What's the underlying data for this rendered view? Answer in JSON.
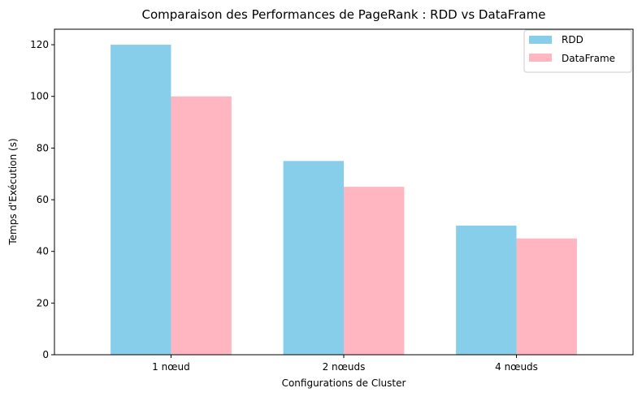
{
  "chart_data": {
    "type": "bar",
    "title": "Comparaison des Performances de PageRank : RDD vs DataFrame",
    "xlabel": "Configurations de Cluster",
    "ylabel": "Temps d'Exécution (s)",
    "categories": [
      "1 nœud",
      "2 nœuds",
      "4 nœuds"
    ],
    "series": [
      {
        "name": "RDD",
        "values": [
          120,
          75,
          50
        ],
        "color": "#87CEEB"
      },
      {
        "name": "DataFrame",
        "values": [
          100,
          65,
          45
        ],
        "color": "#FFB6C1"
      }
    ],
    "ylim": [
      0,
      126
    ],
    "yticks": [
      0,
      20,
      40,
      60,
      80,
      100,
      120
    ],
    "grid": false,
    "legend_position": "top-right"
  }
}
